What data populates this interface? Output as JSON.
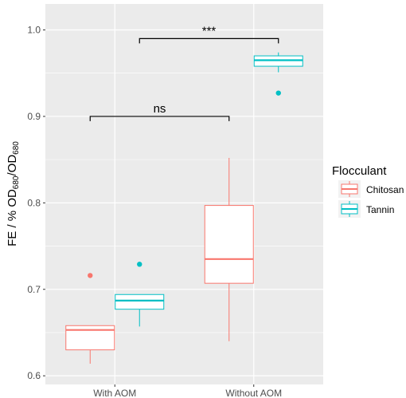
{
  "chart_data": {
    "type": "boxplot",
    "x_categories": [
      "With AOM",
      "Without AOM"
    ],
    "ylim": [
      0.59,
      1.03
    ],
    "y_ticks": [
      "0.6",
      "0.7",
      "0.8",
      "0.9",
      "1.0"
    ],
    "ylabel": {
      "prefix": "FE / % OD",
      "sub1": "680",
      "mid": "/OD",
      "sub2": "680"
    },
    "legend": {
      "title": "Flocculant",
      "position": "right",
      "entries": [
        {
          "name": "Chitosan",
          "color": "#F8766D"
        },
        {
          "name": "Tannin",
          "color": "#00BFC4"
        }
      ]
    },
    "grid": true,
    "series": [
      {
        "name": "Chitosan",
        "color": "#F8766D",
        "boxes": [
          {
            "category": "With AOM",
            "whisker_low": 0.614,
            "q1": 0.63,
            "median": 0.653,
            "q3": 0.658,
            "whisker_high": 0.658,
            "outliers": [
              0.716
            ]
          },
          {
            "category": "Without AOM",
            "whisker_low": 0.64,
            "q1": 0.707,
            "median": 0.735,
            "q3": 0.797,
            "whisker_high": 0.852,
            "outliers": []
          }
        ]
      },
      {
        "name": "Tannin",
        "color": "#00BFC4",
        "boxes": [
          {
            "category": "With AOM",
            "whisker_low": 0.657,
            "q1": 0.677,
            "median": 0.687,
            "q3": 0.694,
            "whisker_high": 0.694,
            "outliers": [
              0.729
            ]
          },
          {
            "category": "Without AOM",
            "whisker_low": 0.951,
            "q1": 0.958,
            "median": 0.965,
            "q3": 0.97,
            "whisker_high": 0.974,
            "outliers": [
              0.927
            ]
          }
        ]
      }
    ],
    "annotations": [
      {
        "label": "ns",
        "from": "Chitosan|With AOM",
        "to": "Chitosan|Without AOM",
        "y": 0.9
      },
      {
        "label": "***",
        "from": "Tannin|With AOM",
        "to": "Tannin|Without AOM",
        "y": 0.99
      }
    ]
  }
}
